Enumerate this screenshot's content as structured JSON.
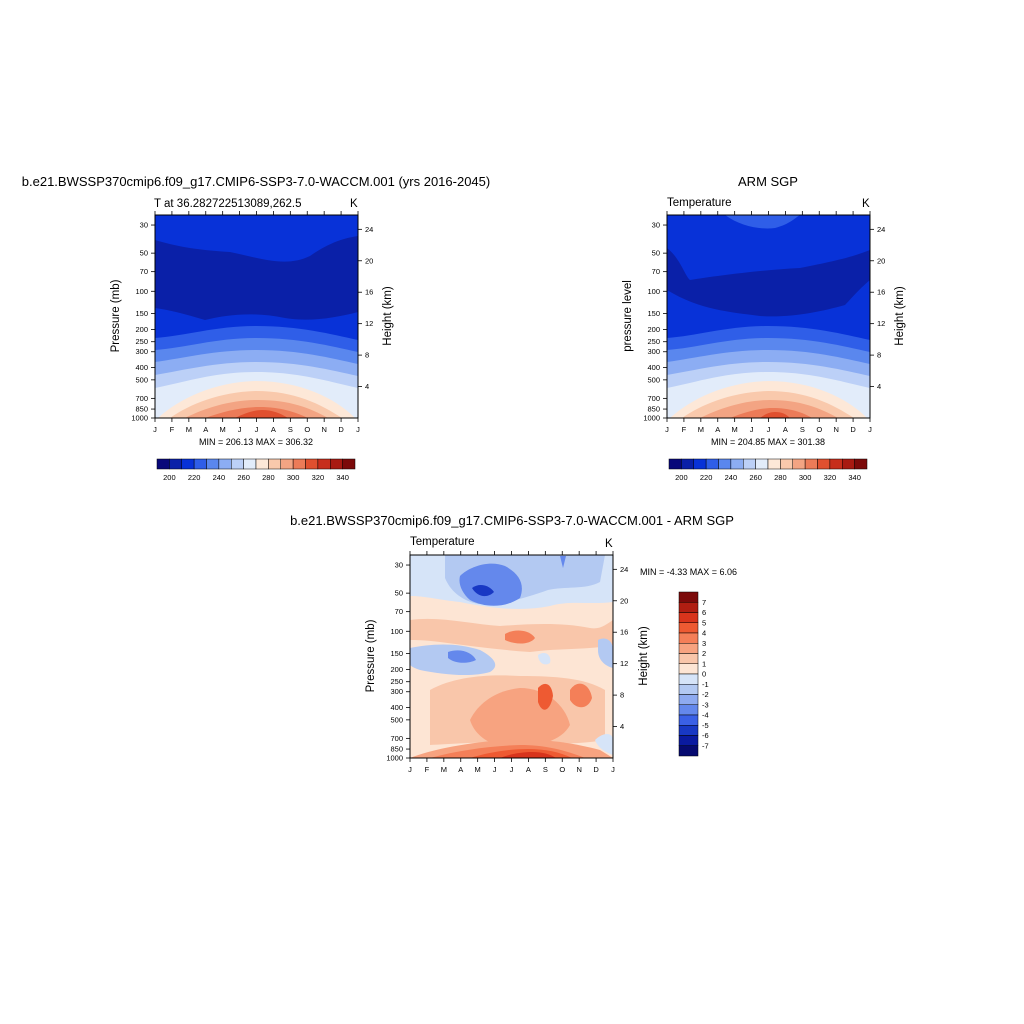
{
  "chart_data": [
    {
      "type": "heatmap",
      "title": "b.e21.BWSSP370cmip6.f09_g17.CMIP6-SSP3-7.0-WACCM.001 (yrs 2016-2045)",
      "left_label": "T at 36.282722513089,262.5",
      "units": "K",
      "ylabel": "Pressure (mb)",
      "ylabel_right": "Height (km)",
      "stats": "MIN = 206.13 MAX = 306.32",
      "xticks": [
        "J",
        "F",
        "M",
        "A",
        "M",
        "J",
        "J",
        "A",
        "S",
        "O",
        "N",
        "D",
        "J"
      ],
      "pressure_ticks": [
        30,
        50,
        70,
        100,
        150,
        200,
        250,
        300,
        400,
        500,
        700,
        850,
        1000
      ],
      "height_ticks": [
        24,
        20,
        16,
        12,
        8,
        4
      ],
      "colorbar": {
        "labels": [
          "200",
          "220",
          "240",
          "260",
          "280",
          "300",
          "320",
          "340"
        ]
      }
    },
    {
      "type": "heatmap",
      "title": "ARM SGP",
      "left_label": "Temperature",
      "units": "K",
      "ylabel": "pressure level",
      "ylabel_right": "Height (km)",
      "stats": "MIN = 204.85 MAX = 301.38",
      "xticks": [
        "J",
        "F",
        "M",
        "A",
        "M",
        "J",
        "J",
        "A",
        "S",
        "O",
        "N",
        "D",
        "J"
      ],
      "pressure_ticks": [
        30,
        50,
        70,
        100,
        150,
        200,
        250,
        300,
        400,
        500,
        700,
        850,
        1000
      ],
      "height_ticks": [
        24,
        20,
        16,
        12,
        8,
        4
      ],
      "colorbar": {
        "labels": [
          "200",
          "220",
          "240",
          "260",
          "280",
          "300",
          "320",
          "340"
        ]
      }
    },
    {
      "type": "heatmap",
      "title": "b.e21.BWSSP370cmip6.f09_g17.CMIP6-SSP3-7.0-WACCM.001 - ARM SGP",
      "left_label": "Temperature",
      "units": "K",
      "ylabel": "Pressure (mb)",
      "ylabel_right": "Height (km)",
      "stats": "MIN =  -4.33 MAX =   6.06",
      "xticks": [
        "J",
        "F",
        "M",
        "A",
        "M",
        "J",
        "J",
        "A",
        "S",
        "O",
        "N",
        "D",
        "J"
      ],
      "pressure_ticks": [
        30,
        50,
        70,
        100,
        150,
        200,
        250,
        300,
        400,
        500,
        700,
        850,
        1000
      ],
      "height_ticks": [
        24,
        20,
        16,
        12,
        8,
        4
      ],
      "colorbar": {
        "labels": [
          "7",
          "6",
          "5",
          "4",
          "3",
          "2",
          "1",
          "0",
          "-1",
          "-2",
          "-3",
          "-4",
          "-5",
          "-6",
          "-7"
        ]
      }
    }
  ],
  "palettes": {
    "temperature": [
      "#08087a",
      "#0a20a8",
      "#0832d8",
      "#2f5ee8",
      "#5a87ee",
      "#8cadf3",
      "#bcd0f7",
      "#e2ecfa",
      "#fde8d8",
      "#f9c9ac",
      "#f3a483",
      "#ec7b58",
      "#e0502f",
      "#c72e1c",
      "#a81a12",
      "#7c0a0a"
    ],
    "difference": [
      "#7c0a0a",
      "#b01e12",
      "#d8341c",
      "#ee5a32",
      "#f47f58",
      "#f7a380",
      "#f9c6aa",
      "#fde5d4",
      "#d6e4f8",
      "#b3c9f2",
      "#8eaaf0",
      "#6488ec",
      "#3a60e6",
      "#1838c4",
      "#0a1aa0",
      "#060a70"
    ]
  }
}
